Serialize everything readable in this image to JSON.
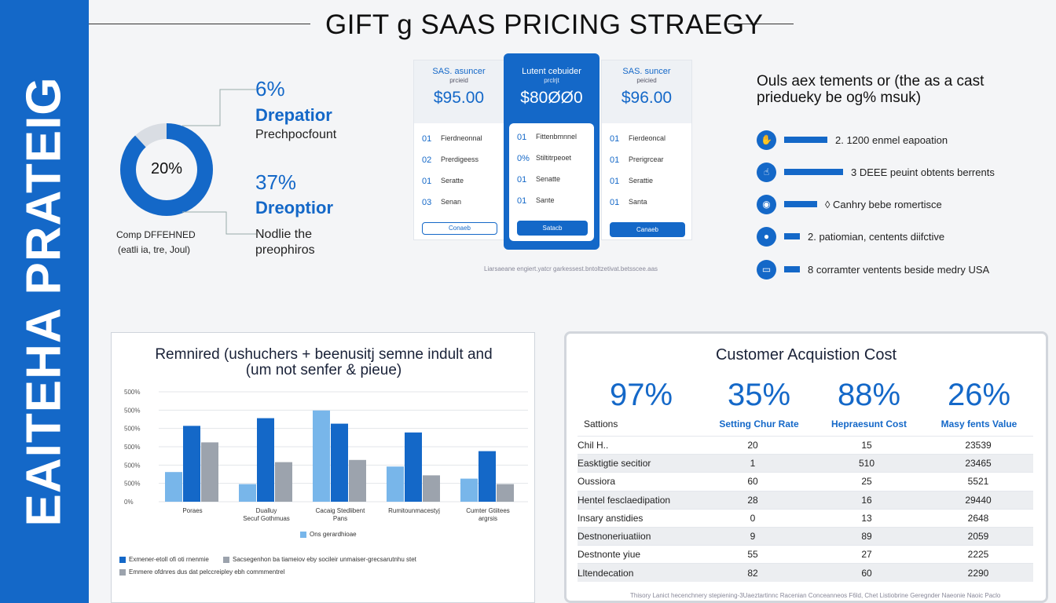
{
  "sidebar": {
    "text": "EAITEHA PRATEIG"
  },
  "header": {
    "title": "GIFT g SAAS PRICING STRAEGY"
  },
  "donut": {
    "label": "20%",
    "percent": 20,
    "caption_line1": "Comp DFFEHNED",
    "caption_line2": "(eatli ia, tre, Joul)",
    "colors": {
      "main": "#1468c8",
      "rest": "#d9dde3"
    }
  },
  "stats": [
    {
      "pct": "6%",
      "name": "Drepatior",
      "sub": "Prechpocfount"
    },
    {
      "pct": "37%",
      "name": "Dreoptior",
      "sub": "Nodlie the\npreophiros"
    }
  ],
  "plans": [
    {
      "name": "SAS. asuncer",
      "sub": "prcieid",
      "price": "$95.00",
      "features": [
        {
          "n": "01",
          "label": "Fierdneonnal"
        },
        {
          "n": "02",
          "label": "Prerdigeess"
        },
        {
          "n": "01",
          "label": "Seratte"
        },
        {
          "n": "03",
          "label": "Senan"
        }
      ],
      "button": "Conaeb"
    },
    {
      "name": "Lutent cebuider",
      "sub": "prclrjt",
      "price": "$80ØØ0",
      "features": [
        {
          "n": "01",
          "label": "Fittenbmnnel"
        },
        {
          "n": "0%",
          "label": "Stiltitrpeoet"
        },
        {
          "n": "01",
          "label": "Senatte"
        },
        {
          "n": "01",
          "label": "Sante"
        }
      ],
      "button": "Satacb"
    },
    {
      "name": "SAS. suncer",
      "sub": "peicied",
      "price": "$96.00",
      "features": [
        {
          "n": "01",
          "label": "Fierdeoncal"
        },
        {
          "n": "01",
          "label": "Prerigrcear"
        },
        {
          "n": "01",
          "label": "Serattie"
        },
        {
          "n": "01",
          "label": "Santa"
        }
      ],
      "button": "Canaeb"
    }
  ],
  "plans_note": "Liarsaeane engiert.yatcr garkessest.bntoltzetivat.betsscee.aas",
  "right_panel": {
    "heading_line1": "Ouls aex tements or (the as a cast",
    "heading_line2": "priedueky be og% msuk)",
    "rows": [
      {
        "icon": "handshake-icon",
        "glyph": "✋",
        "bar": 0.55,
        "text": "2. 1200 enmel eapoation"
      },
      {
        "icon": "cursor-icon",
        "glyph": "☝",
        "bar": 0.75,
        "text": "3  DEEE peuint obtents berrents"
      },
      {
        "icon": "chat-icon",
        "glyph": "◉",
        "bar": 0.42,
        "text": "◊  Canhry bebe romertisce"
      },
      {
        "icon": "person-icon",
        "glyph": "●",
        "bar": 0.2,
        "text": "2.  patiomian, centents diifctive"
      },
      {
        "icon": "screen-icon",
        "glyph": "▭",
        "bar": 0.2,
        "text": "8   corramter ventents beside medry USA"
      }
    ]
  },
  "chart_data": {
    "type": "bar",
    "title_line1": "Remnired (ushuchers + beenusitj semne indult and",
    "title_line2": "(um not senfer & pieue)",
    "y_tick_labels": [
      "500%",
      "500%",
      "500%",
      "500%",
      "500%",
      "500%",
      "0%"
    ],
    "ylim": [
      0,
      100
    ],
    "categories": [
      "Poraes",
      "Dualluy\nSecuf Gothmuas",
      "Cacaig Stedlibent\nPans",
      "Rumitounmacestyj",
      "Cumter Gtiitees\nargrsis"
    ],
    "series": [
      {
        "name": "Ons gerardhioae",
        "color": "#78b6ea",
        "values": [
          27,
          16,
          83,
          32,
          21
        ]
      },
      {
        "name": "Exmener-etoll ofi oti rnenmie",
        "color": "#1468c8",
        "values": [
          69,
          76,
          71,
          63,
          46
        ]
      },
      {
        "name": "Sacsegenhon ba tiameiov eby socileir unmaiser-grecsarutnhu stet",
        "color": "#9ca3ad",
        "values": [
          54,
          36,
          38,
          24,
          16
        ]
      }
    ],
    "legend_extra": "Emmere ofdnres dus dat pelccreipley ebh commmentrel"
  },
  "cac": {
    "title": "Customer Acquistion Cost",
    "kpis": [
      "97%",
      "35%",
      "88%",
      "26%"
    ],
    "headers": [
      "Sattions",
      "Setting Chur Rate",
      "Hepraesunt Cost",
      "Masy fents Value"
    ],
    "rows": [
      [
        "Chil H..",
        "20",
        "15",
        "23539"
      ],
      [
        "Easktigtie secitior",
        "1",
        "510",
        "23465"
      ],
      [
        "Oussiora",
        "60",
        "25",
        "5521"
      ],
      [
        "Hentel fesclaedipation",
        "28",
        "16",
        "29440"
      ],
      [
        "Insary anstidies",
        "0",
        "13",
        "2648"
      ],
      [
        "Destnoneriuatiion",
        "9",
        "89",
        "2059"
      ],
      [
        "Destnonte yiue",
        "55",
        "27",
        "2225"
      ],
      [
        "Lltendecation",
        "82",
        "60",
        "2290"
      ]
    ]
  },
  "footer_note": "Thisory Lanict hecenchnery stepiening-3Uaeztartinnc Racenian Conceanneos F6ld, Chet Listiobrine Geregnder Naeonie Naoic Paclo"
}
